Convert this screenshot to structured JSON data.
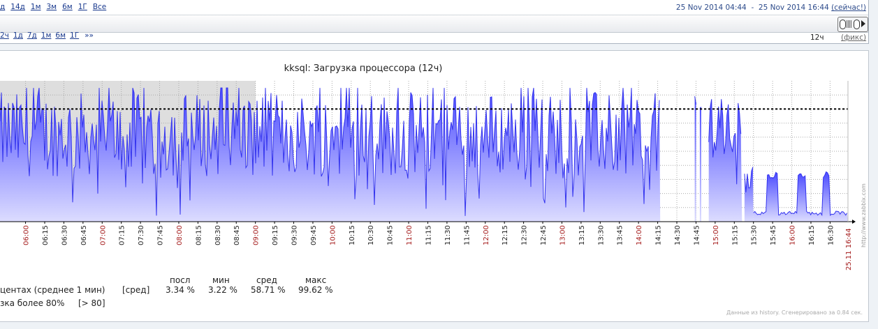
{
  "zoom": {
    "links": [
      "д",
      "14д",
      "1м",
      "3м",
      "6м",
      "1Г",
      "Все"
    ]
  },
  "range": {
    "from": "25 Nov 2014 04:44",
    "sep": "-",
    "to": "25 Nov 2014 16:44",
    "now": "(сейчас!)"
  },
  "period": {
    "links": [
      "2ч",
      "1д",
      "7д",
      "1м",
      "6м",
      "1Г"
    ],
    "more": "»»",
    "value": "12ч",
    "fixed": "(фикс)"
  },
  "graph": {
    "title": "kksql: Загрузка процессора (12ч)",
    "watermark": "http://www.zabbix.com",
    "end_label": "25.11 16:44",
    "footer": "Данные из history. Сгенерировано за 0.84 сек."
  },
  "legend": {
    "headers": [
      "посл",
      "мин",
      "сред",
      "макс"
    ],
    "item": {
      "name": "центах (среднее 1 мин)",
      "func": "[сред]",
      "values": [
        "3.34 %",
        "3.22 %",
        "58.71 %",
        "99.62 %"
      ]
    },
    "trigger": {
      "name": "зка более 80%",
      "cond": "[> 80]"
    }
  },
  "chart_data": {
    "type": "area",
    "title": "kksql: Загрузка процессора (12ч)",
    "ylim": [
      0,
      100
    ],
    "y_unit": "%",
    "x_ticks": [
      "06:00",
      "06:15",
      "06:30",
      "06:45",
      "07:00",
      "07:15",
      "07:30",
      "07:45",
      "08:00",
      "08:15",
      "08:30",
      "08:45",
      "09:00",
      "09:15",
      "09:30",
      "09:45",
      "10:00",
      "10:15",
      "10:30",
      "10:45",
      "11:00",
      "11:15",
      "11:30",
      "11:45",
      "12:00",
      "12:15",
      "12:30",
      "12:45",
      "13:00",
      "13:15",
      "13:30",
      "13:45",
      "14:00",
      "14:15",
      "14:30",
      "14:45",
      "15:00",
      "15:15",
      "15:30",
      "15:45",
      "16:00",
      "16:15",
      "16:30"
    ],
    "hour_ticks": [
      "06:00",
      "07:00",
      "08:00",
      "09:00",
      "10:00",
      "11:00",
      "12:00",
      "13:00",
      "14:00",
      "15:00",
      "16:00"
    ],
    "trigger_line": 80,
    "series": [
      {
        "color": "#3333ee",
        "segments": [
          {
            "start": "05:40",
            "end": "14:17",
            "base": 62,
            "amp": 30
          },
          {
            "start": "14:44",
            "end": "14:45",
            "base": 85,
            "amp": 10
          },
          {
            "start": "14:48",
            "end": "14:48",
            "base": 78,
            "amp": 10
          },
          {
            "start": "14:55",
            "end": "15:21",
            "base": 65,
            "amp": 20
          },
          {
            "start": "15:23",
            "end": "15:30",
            "base": 30,
            "amp": 8
          },
          {
            "start": "15:30",
            "end": "16:44",
            "base": 6,
            "amp": 3
          }
        ],
        "spikes": [
          {
            "from": "15:40",
            "to": "15:49",
            "value": 33
          },
          {
            "from": "16:05",
            "to": "16:11",
            "value": 32
          },
          {
            "from": "16:24",
            "to": "16:30",
            "value": 33
          }
        ]
      }
    ]
  }
}
